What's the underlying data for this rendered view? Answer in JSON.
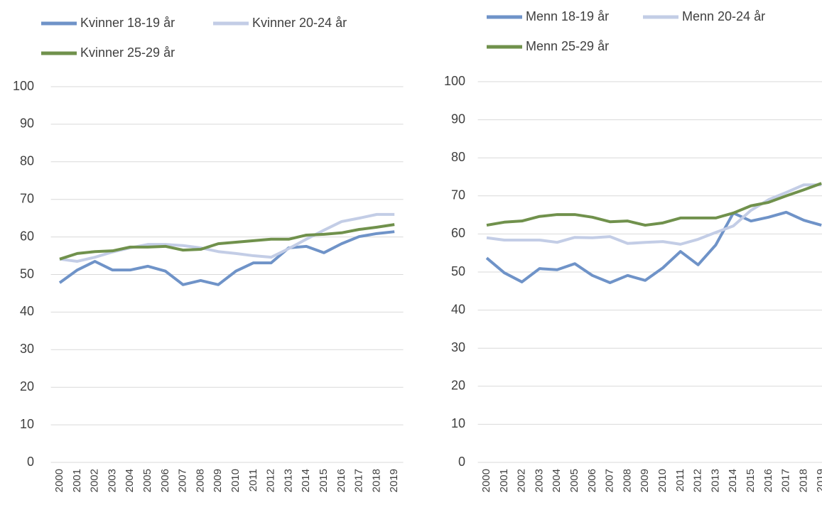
{
  "chart_data": [
    {
      "type": "line",
      "categories": [
        "2000",
        "2001",
        "2002",
        "2003",
        "2004",
        "2005",
        "2006",
        "2007",
        "2008",
        "2009",
        "2010",
        "2011",
        "2012",
        "2013",
        "2014",
        "2015",
        "2016",
        "2017",
        "2018",
        "2019"
      ],
      "ylim": [
        0,
        100
      ],
      "yticks": [
        0,
        10,
        20,
        30,
        40,
        50,
        60,
        70,
        80,
        90,
        100
      ],
      "grid": true,
      "series": [
        {
          "name": "Kvinner 18-19 år",
          "color": "#6f93c8",
          "values": [
            47.8,
            51.2,
            53.5,
            51.2,
            51.2,
            52.2,
            50.9,
            47.3,
            48.4,
            47.3,
            50.9,
            53.1,
            53.1,
            57.1,
            57.5,
            55.8,
            58.2,
            60.1,
            60.9,
            61.4
          ]
        },
        {
          "name": "Kvinner 20-24 år",
          "color": "#c3cde6",
          "values": [
            54.1,
            53.5,
            54.6,
            56.0,
            57.1,
            58.0,
            58.0,
            57.7,
            57.1,
            56.1,
            55.6,
            55.0,
            54.6,
            56.9,
            59.4,
            61.8,
            64.1,
            65.0,
            66.0,
            66.0
          ]
        },
        {
          "name": "Kvinner 25-29 år",
          "color": "#70914c",
          "values": [
            54.1,
            55.6,
            56.1,
            56.3,
            57.3,
            57.3,
            57.5,
            56.5,
            56.7,
            58.2,
            58.6,
            59.0,
            59.4,
            59.4,
            60.5,
            60.7,
            61.1,
            62.0,
            62.6,
            63.3
          ]
        }
      ]
    },
    {
      "type": "line",
      "categories": [
        "2000",
        "2001",
        "2002",
        "2003",
        "2004",
        "2005",
        "2006",
        "2007",
        "2008",
        "2009",
        "2010",
        "2011",
        "2012",
        "2013",
        "2014",
        "2015",
        "2016",
        "2017",
        "2018",
        "2019"
      ],
      "ylim": [
        0,
        100
      ],
      "yticks": [
        0,
        10,
        20,
        30,
        40,
        50,
        60,
        70,
        80,
        90,
        100
      ],
      "grid": true,
      "series": [
        {
          "name": "Menn 18-19 år",
          "color": "#6f93c8",
          "values": [
            53.7,
            49.8,
            47.4,
            50.9,
            50.6,
            52.2,
            49.1,
            47.2,
            49.1,
            47.8,
            51.1,
            55.4,
            51.9,
            57.1,
            65.5,
            63.4,
            64.4,
            65.7,
            63.6,
            62.3
          ]
        },
        {
          "name": "Menn 20-24 år",
          "color": "#c3cde6",
          "values": [
            59.0,
            58.4,
            58.4,
            58.4,
            57.8,
            59.1,
            59.0,
            59.3,
            57.5,
            57.8,
            58.0,
            57.3,
            58.6,
            60.4,
            62.1,
            66.2,
            69.0,
            70.9,
            72.9,
            72.9
          ]
        },
        {
          "name": "Menn 25-29 år",
          "color": "#70914c",
          "values": [
            62.3,
            63.1,
            63.4,
            64.6,
            65.1,
            65.1,
            64.4,
            63.2,
            63.4,
            62.3,
            62.9,
            64.2,
            64.2,
            64.2,
            65.5,
            67.4,
            68.3,
            70.0,
            71.6,
            73.3
          ]
        }
      ]
    }
  ]
}
